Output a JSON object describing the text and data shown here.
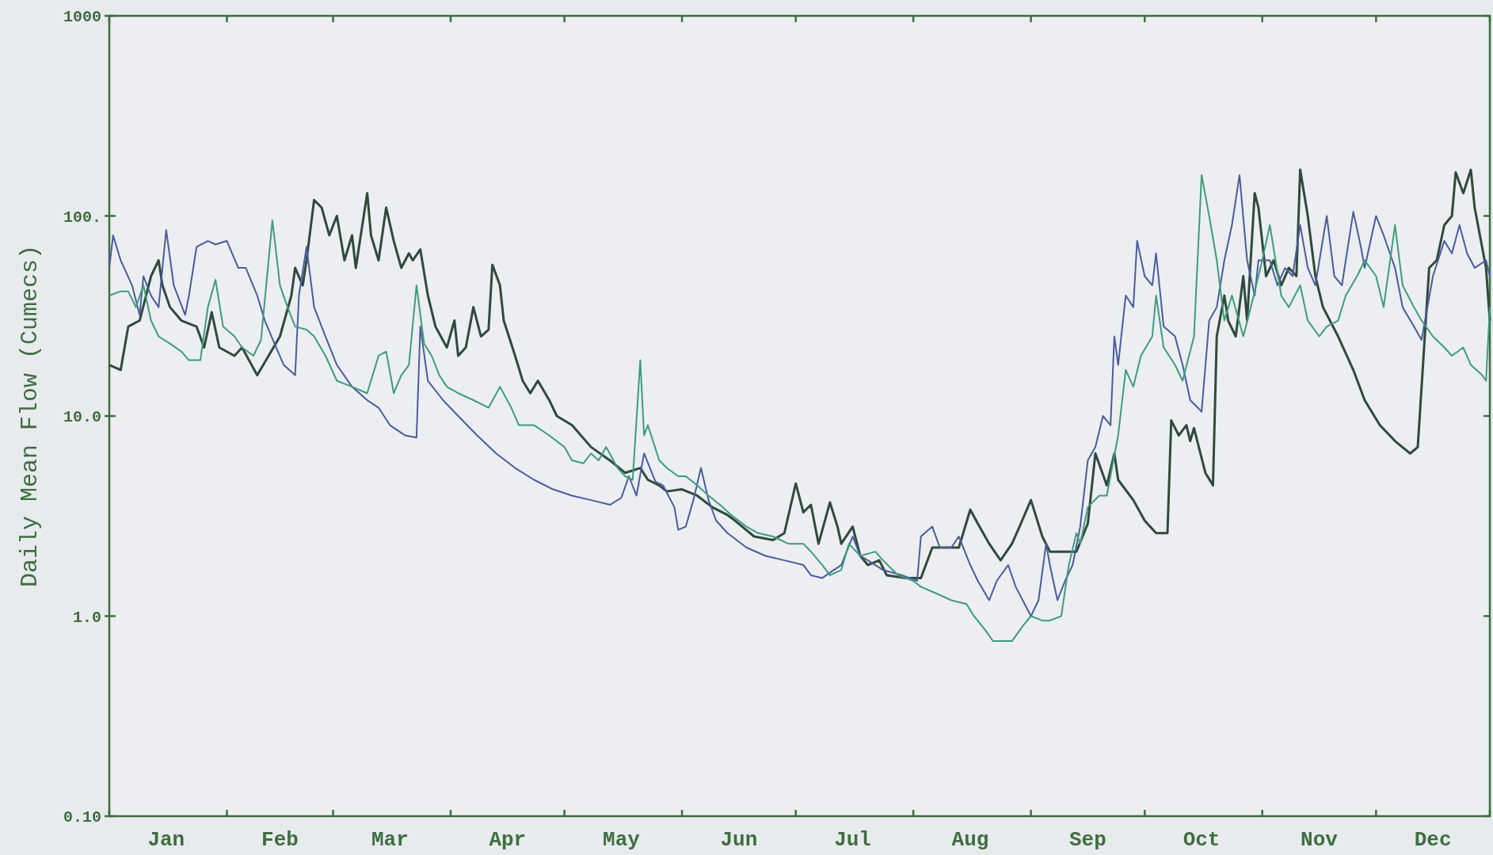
{
  "chart_data": {
    "type": "line",
    "ylabel": "Daily Mean Flow (Cumecs)",
    "log": true,
    "xlim": [
      "--01-01",
      "--12-31"
    ],
    "ylim": [
      0.1,
      1000
    ],
    "xticks": [
      {
        "value": "--01-01",
        "label": null
      },
      {
        "value": "--01-16",
        "label": "Jan"
      },
      {
        "value": "--02-01",
        "label": null
      },
      {
        "value": "--02-15",
        "label": "Feb"
      },
      {
        "value": "--03-01",
        "label": null
      },
      {
        "value": "--03-16",
        "label": "Mar"
      },
      {
        "value": "--04-01",
        "label": null
      },
      {
        "value": "--04-16",
        "label": "Apr"
      },
      {
        "value": "--05-01",
        "label": null
      },
      {
        "value": "--05-16",
        "label": "May"
      },
      {
        "value": "--06-01",
        "label": null
      },
      {
        "value": "--06-16",
        "label": "Jun"
      },
      {
        "value": "--07-01",
        "label": null
      },
      {
        "value": "--07-16",
        "label": "Jul"
      },
      {
        "value": "--08-01",
        "label": null
      },
      {
        "value": "--08-16",
        "label": "Aug"
      },
      {
        "value": "--09-01",
        "label": null
      },
      {
        "value": "--09-16",
        "label": "Sep"
      },
      {
        "value": "--10-01",
        "label": null
      },
      {
        "value": "--10-16",
        "label": "Oct"
      },
      {
        "value": "--11-01",
        "label": null
      },
      {
        "value": "--11-16",
        "label": "Nov"
      },
      {
        "value": "--12-01",
        "label": null
      },
      {
        "value": "--12-16",
        "label": "Dec"
      },
      {
        "value": "--12-31",
        "label": null
      }
    ],
    "yticks": [
      {
        "value": 0.1,
        "label": "0.10"
      },
      {
        "value": 1,
        "label": "1.0"
      },
      {
        "value": 10,
        "label": "10.0"
      },
      {
        "value": 100,
        "label": "100."
      },
      {
        "value": 1000,
        "label": "1000"
      }
    ],
    "series": [
      {
        "color": "#2f4a3c",
        "x": [
          "--01-01",
          "--01-04",
          "--01-06",
          "--01-09",
          "--01-12",
          "--01-14",
          "--01-15",
          "--01-17",
          "--01-20",
          "--01-24",
          "--01-26",
          "--01-28",
          "--01-30",
          "--02-03",
          "--02-05",
          "--02-09",
          "--02-12",
          "--02-15",
          "--02-18",
          "--02-19",
          "--02-21",
          "--02-22",
          "--02-24",
          "--02-26",
          "--02-28",
          "--03-02",
          "--03-04",
          "--03-06",
          "--03-07",
          "--03-10",
          "--03-11",
          "--03-13",
          "--03-15",
          "--03-17",
          "--03-19",
          "--03-21",
          "--03-22",
          "--03-24",
          "--03-26",
          "--03-28",
          "--03-31",
          "--04-02",
          "--04-03",
          "--04-05",
          "--04-07",
          "--04-09",
          "--04-11",
          "--04-12",
          "--04-14",
          "--04-15",
          "--04-18",
          "--04-20",
          "--04-22",
          "--04-24",
          "--04-27",
          "--04-29",
          "--05-03",
          "--05-08",
          "--05-13",
          "--05-17",
          "--05-21",
          "--05-23",
          "--05-26",
          "--05-28",
          "--06-01",
          "--06-05",
          "--06-09",
          "--06-13",
          "--06-15",
          "--06-20",
          "--06-25",
          "--06-28",
          "--07-01",
          "--07-03",
          "--07-05",
          "--07-07",
          "--07-10",
          "--07-12",
          "--07-13",
          "--07-16",
          "--07-18",
          "--07-20",
          "--07-23",
          "--07-25",
          "--07-30",
          "--08-03",
          "--08-06",
          "--08-10",
          "--08-13",
          "--08-16",
          "--08-18",
          "--08-21",
          "--08-24",
          "--08-27",
          "--08-29",
          "--09-01",
          "--09-04",
          "--09-06",
          "--09-10",
          "--09-13",
          "--09-16",
          "--09-18",
          "--09-21",
          "--09-23",
          "--09-24",
          "--09-28",
          "--10-01",
          "--10-04",
          "--10-07",
          "--10-08",
          "--10-10",
          "--10-12",
          "--10-13",
          "--10-14",
          "--10-17",
          "--10-19",
          "--10-20",
          "--10-22",
          "--10-23",
          "--10-25",
          "--10-27",
          "--10-28",
          "--10-30",
          "--10-31",
          "--11-02",
          "--11-04",
          "--11-06",
          "--11-08",
          "--11-10",
          "--11-11",
          "--11-13",
          "--11-15",
          "--11-17",
          "--11-21",
          "--11-25",
          "--11-28",
          "--12-02",
          "--12-06",
          "--12-10",
          "--12-12",
          "--12-15",
          "--12-17",
          "--12-19",
          "--12-21",
          "--12-22",
          "--12-24",
          "--12-26",
          "--12-27",
          "--12-30",
          "--12-31"
        ],
        "values": [
          18,
          17,
          28,
          30,
          50,
          60,
          45,
          35,
          30,
          28,
          22,
          33,
          22,
          20,
          22,
          16,
          20,
          25,
          40,
          55,
          45,
          60,
          120,
          110,
          80,
          100,
          60,
          80,
          55,
          130,
          80,
          60,
          110,
          75,
          55,
          65,
          60,
          68,
          40,
          28,
          22,
          30,
          20,
          22,
          35,
          25,
          27,
          57,
          45,
          30,
          20,
          15,
          13,
          15,
          12,
          10,
          9,
          7,
          6,
          5.2,
          5.5,
          4.8,
          4.5,
          4.2,
          4.3,
          4.0,
          3.5,
          3.2,
          3.0,
          2.5,
          2.4,
          2.6,
          4.6,
          3.3,
          3.6,
          2.3,
          3.7,
          2.8,
          2.3,
          2.8,
          2.0,
          1.8,
          1.9,
          1.6,
          1.55,
          1.55,
          2.2,
          2.2,
          2.2,
          3.4,
          2.9,
          2.3,
          1.9,
          2.3,
          2.8,
          3.8,
          2.5,
          2.1,
          2.1,
          2.1,
          2.9,
          6.5,
          4.5,
          6.5,
          4.8,
          3.8,
          3.0,
          2.6,
          2.6,
          9.5,
          8.0,
          9.0,
          7.5,
          8.7,
          5.2,
          4.5,
          25,
          40,
          30,
          25,
          50,
          30,
          130,
          110,
          50,
          60,
          45,
          55,
          50,
          170,
          100,
          50,
          35,
          25,
          17,
          12,
          9,
          7.5,
          6.5,
          7,
          55,
          60,
          90,
          100,
          165,
          130,
          170,
          110,
          55,
          30
        ]
      },
      {
        "color": "#4a5c9c",
        "x": [
          "--01-01",
          "--01-02",
          "--01-04",
          "--01-07",
          "--01-09",
          "--01-10",
          "--01-12",
          "--01-14",
          "--01-16",
          "--01-18",
          "--01-21",
          "--01-22",
          "--01-24",
          "--01-27",
          "--01-29",
          "--02-01",
          "--02-04",
          "--02-06",
          "--02-09",
          "--02-11",
          "--02-14",
          "--02-16",
          "--02-19",
          "--02-20",
          "--02-22",
          "--02-24",
          "--02-27",
          "--03-02",
          "--03-06",
          "--03-10",
          "--03-13",
          "--03-16",
          "--03-20",
          "--03-23",
          "--03-24",
          "--03-26",
          "--03-30",
          "--04-03",
          "--04-08",
          "--04-13",
          "--04-18",
          "--04-23",
          "--04-28",
          "--05-03",
          "--05-08",
          "--05-13",
          "--05-16",
          "--05-18",
          "--05-20",
          "--05-22",
          "--05-25",
          "--05-27",
          "--05-30",
          "--05-31",
          "--06-02",
          "--06-04",
          "--06-06",
          "--06-08",
          "--06-10",
          "--06-13",
          "--06-18",
          "--06-23",
          "--06-28",
          "--07-03",
          "--07-05",
          "--07-08",
          "--07-11",
          "--07-13",
          "--07-16",
          "--07-18",
          "--07-20",
          "--07-24",
          "--07-29",
          "--08-02",
          "--08-03",
          "--08-06",
          "--08-08",
          "--08-11",
          "--08-13",
          "--08-16",
          "--08-18",
          "--08-21",
          "--08-23",
          "--08-26",
          "--08-28",
          "--09-01",
          "--09-03",
          "--09-05",
          "--09-06",
          "--09-08",
          "--09-10",
          "--09-12",
          "--09-14",
          "--09-16",
          "--09-18",
          "--09-20",
          "--09-22",
          "--09-23",
          "--09-24",
          "--09-26",
          "--09-28",
          "--09-29",
          "--10-01",
          "--10-03",
          "--10-04",
          "--10-06",
          "--10-09",
          "--10-11",
          "--10-13",
          "--10-15",
          "--10-16",
          "--10-18",
          "--10-20",
          "--10-22",
          "--10-24",
          "--10-26",
          "--10-28",
          "--10-30",
          "--10-31",
          "--11-03",
          "--11-05",
          "--11-07",
          "--11-09",
          "--11-11",
          "--11-13",
          "--11-15",
          "--11-18",
          "--11-20",
          "--11-22",
          "--11-25",
          "--11-27",
          "--11-28",
          "--12-01",
          "--12-03",
          "--12-06",
          "--12-08",
          "--12-11",
          "--12-13",
          "--12-16",
          "--12-19",
          "--12-21",
          "--12-23",
          "--12-25",
          "--12-27",
          "--12-30",
          "--12-31"
        ],
        "values": [
          55,
          80,
          60,
          45,
          32,
          50,
          40,
          35,
          85,
          45,
          32,
          40,
          70,
          75,
          72,
          75,
          55,
          55,
          40,
          30,
          22,
          18,
          16,
          40,
          70,
          35,
          25,
          18,
          14,
          12,
          11,
          9,
          8,
          7.8,
          28,
          15,
          12,
          10,
          8,
          6.5,
          5.5,
          4.8,
          4.3,
          4.0,
          3.8,
          3.6,
          3.9,
          5.0,
          4.0,
          6.5,
          4.7,
          4.5,
          3.5,
          2.7,
          2.8,
          3.8,
          5.5,
          3.8,
          3.0,
          2.6,
          2.2,
          2.0,
          1.9,
          1.8,
          1.6,
          1.55,
          1.7,
          1.8,
          2.5,
          2.0,
          1.9,
          1.7,
          1.6,
          1.5,
          2.5,
          2.8,
          2.2,
          2.2,
          2.5,
          1.8,
          1.5,
          1.2,
          1.5,
          1.8,
          1.4,
          1.0,
          1.2,
          2.3,
          1.8,
          1.2,
          1.5,
          1.8,
          2.8,
          6,
          7,
          10,
          9,
          25,
          18,
          40,
          35,
          75,
          50,
          45,
          65,
          28,
          25,
          18,
          12,
          11,
          10.5,
          30,
          35,
          60,
          90,
          160,
          60,
          40,
          60,
          60,
          45,
          55,
          50,
          90,
          55,
          45,
          100,
          50,
          45,
          105,
          70,
          55,
          100,
          80,
          55,
          35,
          28,
          24,
          50,
          75,
          65,
          90,
          65,
          55,
          60,
          50
        ]
      },
      {
        "color": "#3d9c7c",
        "x": [
          "--01-01",
          "--01-04",
          "--01-06",
          "--01-08",
          "--01-10",
          "--01-12",
          "--01-14",
          "--01-17",
          "--01-20",
          "--01-22",
          "--01-25",
          "--01-27",
          "--01-29",
          "--01-31",
          "--02-03",
          "--02-05",
          "--02-08",
          "--02-10",
          "--02-13",
          "--02-15",
          "--02-17",
          "--02-19",
          "--02-22",
          "--02-24",
          "--02-27",
          "--03-02",
          "--03-06",
          "--03-10",
          "--03-13",
          "--03-15",
          "--03-17",
          "--03-19",
          "--03-21",
          "--03-23",
          "--03-25",
          "--03-27",
          "--03-29",
          "--03-31",
          "--04-03",
          "--04-07",
          "--04-11",
          "--04-14",
          "--04-17",
          "--04-19",
          "--04-23",
          "--04-27",
          "--05-01",
          "--05-03",
          "--05-06",
          "--05-08",
          "--05-10",
          "--05-12",
          "--05-15",
          "--05-17",
          "--05-19",
          "--05-21",
          "--05-22",
          "--05-23",
          "--05-26",
          "--05-28",
          "--05-31",
          "--06-02",
          "--06-05",
          "--06-08",
          "--06-11",
          "--06-14",
          "--06-18",
          "--06-21",
          "--06-25",
          "--06-29",
          "--07-03",
          "--07-05",
          "--07-08",
          "--07-10",
          "--07-13",
          "--07-15",
          "--07-18",
          "--07-22",
          "--07-24",
          "--07-28",
          "--08-01",
          "--08-03",
          "--08-07",
          "--08-11",
          "--08-15",
          "--08-17",
          "--08-20",
          "--08-22",
          "--08-25",
          "--08-27",
          "--08-30",
          "--09-01",
          "--09-04",
          "--09-06",
          "--09-09",
          "--09-11",
          "--09-13",
          "--09-14",
          "--09-16",
          "--09-19",
          "--09-21",
          "--09-24",
          "--09-26",
          "--09-28",
          "--09-30",
          "--10-03",
          "--10-04",
          "--10-06",
          "--10-09",
          "--10-11",
          "--10-14",
          "--10-16",
          "--10-18",
          "--10-20",
          "--10-22",
          "--10-24",
          "--10-27",
          "--10-29",
          "--11-01",
          "--11-03",
          "--11-06",
          "--11-08",
          "--11-11",
          "--11-13",
          "--11-16",
          "--11-18",
          "--11-21",
          "--11-23",
          "--11-26",
          "--11-28",
          "--12-01",
          "--12-03",
          "--12-06",
          "--12-08",
          "--12-11",
          "--12-13",
          "--12-16",
          "--12-19",
          "--12-21",
          "--12-24",
          "--12-26",
          "--12-29",
          "--12-30",
          "--12-31"
        ],
        "values": [
          40,
          42,
          42,
          35,
          45,
          30,
          25,
          23,
          21,
          19,
          19,
          35,
          48,
          28,
          25,
          22,
          20,
          24,
          95,
          45,
          35,
          28,
          27,
          25,
          20,
          15,
          14,
          13,
          20,
          21,
          13,
          16,
          18,
          45,
          23,
          20,
          16,
          14,
          13,
          12,
          11,
          14,
          11,
          9,
          9,
          8,
          7,
          6,
          5.8,
          6.5,
          6.0,
          7.0,
          5.5,
          5.0,
          4.8,
          19,
          8,
          9,
          6,
          5.5,
          5,
          5,
          4.5,
          4.0,
          3.6,
          3.2,
          2.8,
          2.6,
          2.5,
          2.3,
          2.3,
          2.1,
          1.8,
          1.6,
          1.7,
          2.3,
          2.0,
          2.1,
          1.9,
          1.6,
          1.5,
          1.4,
          1.3,
          1.2,
          1.15,
          1.0,
          0.85,
          0.75,
          0.75,
          0.75,
          0.9,
          1.0,
          0.95,
          0.95,
          1.0,
          1.8,
          2.6,
          2.3,
          3.5,
          4.0,
          4.0,
          8,
          17,
          14,
          20,
          25,
          40,
          22,
          18,
          15,
          25,
          160,
          100,
          60,
          30,
          40,
          25,
          35,
          60,
          90,
          40,
          35,
          45,
          30,
          25,
          28,
          30,
          40,
          50,
          60,
          50,
          35,
          90,
          45,
          35,
          30,
          25,
          22,
          20,
          22,
          18,
          16,
          15,
          35
        ]
      }
    ]
  }
}
